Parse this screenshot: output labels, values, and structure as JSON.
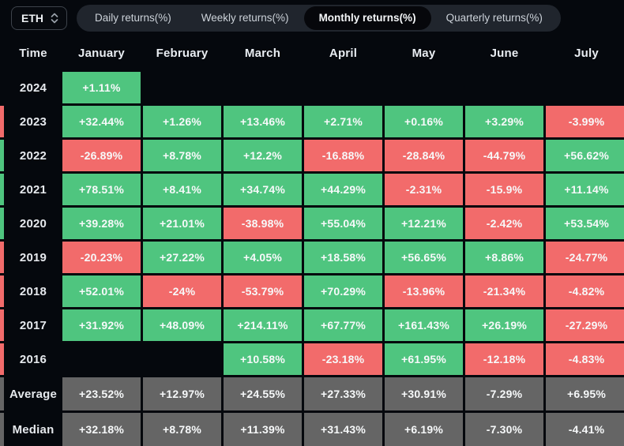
{
  "toolbar": {
    "symbol": {
      "value": "ETH",
      "icon": "select-updown-icon"
    },
    "tabs": [
      {
        "label": "Daily returns(%)",
        "active": false
      },
      {
        "label": "Weekly returns(%)",
        "active": false
      },
      {
        "label": "Monthly returns(%)",
        "active": true
      },
      {
        "label": "Quarterly returns(%)",
        "active": false
      }
    ]
  },
  "colors": {
    "positive": "#4fc57f",
    "negative": "#f26b6b",
    "neutral": "#656565"
  },
  "table": {
    "columns": [
      "Time",
      "January",
      "February",
      "March",
      "April",
      "May",
      "June",
      "July"
    ],
    "rows": [
      {
        "label": "2024",
        "kind": "year",
        "edge": null,
        "cells": [
          {
            "v": "+1.11%",
            "c": "positive"
          },
          null,
          null,
          null,
          null,
          null,
          null
        ]
      },
      {
        "label": "2023",
        "kind": "year",
        "edge": "negative",
        "cells": [
          {
            "v": "+32.44%",
            "c": "positive"
          },
          {
            "v": "+1.26%",
            "c": "positive"
          },
          {
            "v": "+13.46%",
            "c": "positive"
          },
          {
            "v": "+2.71%",
            "c": "positive"
          },
          {
            "v": "+0.16%",
            "c": "positive"
          },
          {
            "v": "+3.29%",
            "c": "positive"
          },
          {
            "v": "-3.99%",
            "c": "negative"
          }
        ]
      },
      {
        "label": "2022",
        "kind": "year",
        "edge": "positive",
        "cells": [
          {
            "v": "-26.89%",
            "c": "negative"
          },
          {
            "v": "+8.78%",
            "c": "positive"
          },
          {
            "v": "+12.2%",
            "c": "positive"
          },
          {
            "v": "-16.88%",
            "c": "negative"
          },
          {
            "v": "-28.84%",
            "c": "negative"
          },
          {
            "v": "-44.79%",
            "c": "negative"
          },
          {
            "v": "+56.62%",
            "c": "positive"
          }
        ]
      },
      {
        "label": "2021",
        "kind": "year",
        "edge": "positive",
        "cells": [
          {
            "v": "+78.51%",
            "c": "positive"
          },
          {
            "v": "+8.41%",
            "c": "positive"
          },
          {
            "v": "+34.74%",
            "c": "positive"
          },
          {
            "v": "+44.29%",
            "c": "positive"
          },
          {
            "v": "-2.31%",
            "c": "negative"
          },
          {
            "v": "-15.9%",
            "c": "negative"
          },
          {
            "v": "+11.14%",
            "c": "positive"
          }
        ]
      },
      {
        "label": "2020",
        "kind": "year",
        "edge": "positive",
        "cells": [
          {
            "v": "+39.28%",
            "c": "positive"
          },
          {
            "v": "+21.01%",
            "c": "positive"
          },
          {
            "v": "-38.98%",
            "c": "negative"
          },
          {
            "v": "+55.04%",
            "c": "positive"
          },
          {
            "v": "+12.21%",
            "c": "positive"
          },
          {
            "v": "-2.42%",
            "c": "negative"
          },
          {
            "v": "+53.54%",
            "c": "positive"
          }
        ]
      },
      {
        "label": "2019",
        "kind": "year",
        "edge": "negative",
        "cells": [
          {
            "v": "-20.23%",
            "c": "negative"
          },
          {
            "v": "+27.22%",
            "c": "positive"
          },
          {
            "v": "+4.05%",
            "c": "positive"
          },
          {
            "v": "+18.58%",
            "c": "positive"
          },
          {
            "v": "+56.65%",
            "c": "positive"
          },
          {
            "v": "+8.86%",
            "c": "positive"
          },
          {
            "v": "-24.77%",
            "c": "negative"
          }
        ]
      },
      {
        "label": "2018",
        "kind": "year",
        "edge": "negative",
        "cells": [
          {
            "v": "+52.01%",
            "c": "positive"
          },
          {
            "v": "-24%",
            "c": "negative"
          },
          {
            "v": "-53.79%",
            "c": "negative"
          },
          {
            "v": "+70.29%",
            "c": "positive"
          },
          {
            "v": "-13.96%",
            "c": "negative"
          },
          {
            "v": "-21.34%",
            "c": "negative"
          },
          {
            "v": "-4.82%",
            "c": "negative"
          }
        ]
      },
      {
        "label": "2017",
        "kind": "year",
        "edge": "negative",
        "cells": [
          {
            "v": "+31.92%",
            "c": "positive"
          },
          {
            "v": "+48.09%",
            "c": "positive"
          },
          {
            "v": "+214.11%",
            "c": "positive"
          },
          {
            "v": "+67.77%",
            "c": "positive"
          },
          {
            "v": "+161.43%",
            "c": "positive"
          },
          {
            "v": "+26.19%",
            "c": "positive"
          },
          {
            "v": "-27.29%",
            "c": "negative"
          }
        ]
      },
      {
        "label": "2016",
        "kind": "year",
        "edge": "negative",
        "cells": [
          null,
          null,
          {
            "v": "+10.58%",
            "c": "positive"
          },
          {
            "v": "-23.18%",
            "c": "negative"
          },
          {
            "v": "+61.95%",
            "c": "positive"
          },
          {
            "v": "-12.18%",
            "c": "negative"
          },
          {
            "v": "-4.83%",
            "c": "negative"
          }
        ]
      },
      {
        "label": "Average",
        "kind": "summary",
        "edge": "neutral",
        "cells": [
          {
            "v": "+23.52%",
            "c": "neutral"
          },
          {
            "v": "+12.97%",
            "c": "neutral"
          },
          {
            "v": "+24.55%",
            "c": "neutral"
          },
          {
            "v": "+27.33%",
            "c": "neutral"
          },
          {
            "v": "+30.91%",
            "c": "neutral"
          },
          {
            "v": "-7.29%",
            "c": "neutral"
          },
          {
            "v": "+6.95%",
            "c": "neutral"
          }
        ]
      },
      {
        "label": "Median",
        "kind": "summary",
        "edge": "neutral",
        "cells": [
          {
            "v": "+32.18%",
            "c": "neutral"
          },
          {
            "v": "+8.78%",
            "c": "neutral"
          },
          {
            "v": "+11.39%",
            "c": "neutral"
          },
          {
            "v": "+31.43%",
            "c": "neutral"
          },
          {
            "v": "+6.19%",
            "c": "neutral"
          },
          {
            "v": "-7.30%",
            "c": "neutral"
          },
          {
            "v": "-4.41%",
            "c": "neutral"
          }
        ]
      }
    ]
  }
}
